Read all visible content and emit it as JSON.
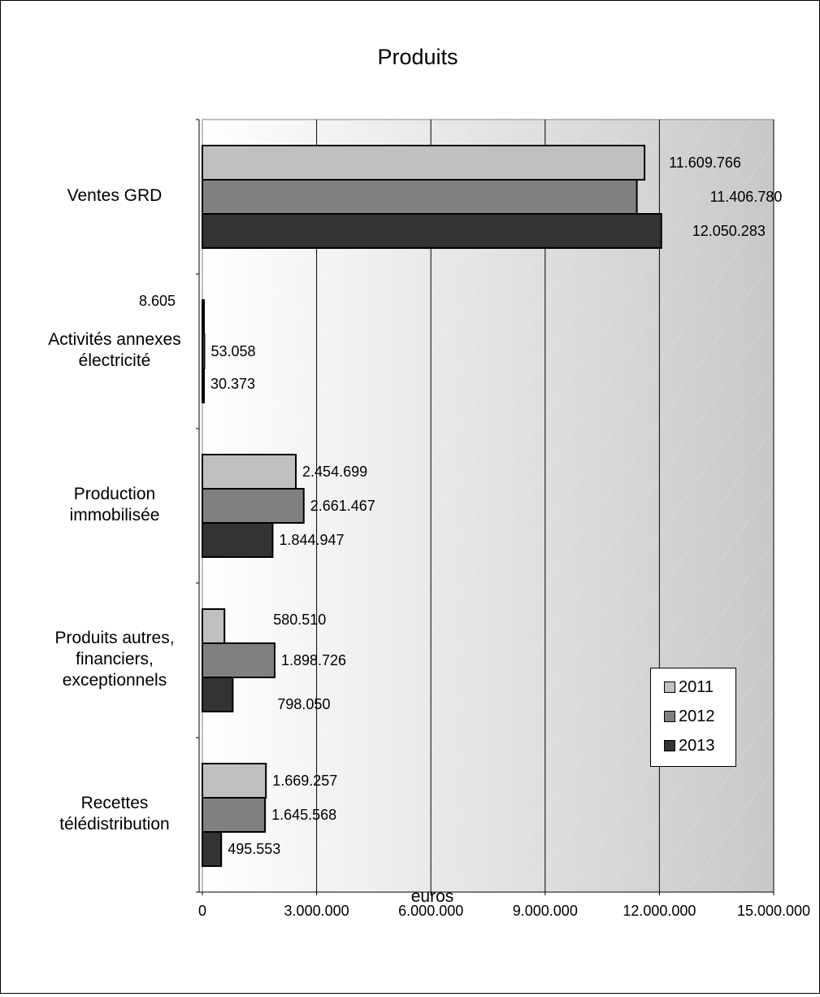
{
  "chart_data": {
    "type": "bar",
    "orientation": "horizontal",
    "title": "Produits",
    "xlabel": "euros",
    "ylabel": "",
    "xlim": [
      0,
      15000000
    ],
    "x_ticks": [
      0,
      3000000,
      6000000,
      9000000,
      12000000,
      15000000
    ],
    "x_tick_labels": [
      "0",
      "3.000.000",
      "6.000.000",
      "9.000.000",
      "12.000.000",
      "15.000.000"
    ],
    "categories": [
      [
        "Ventes GRD"
      ],
      [
        "Activités annexes",
        "électricité"
      ],
      [
        "Production",
        "immobilisée"
      ],
      [
        "Produits autres,",
        "financiers,",
        "exceptionnels"
      ],
      [
        "Recettes",
        "télédistribution"
      ]
    ],
    "series": [
      {
        "name": "2011",
        "color": "#c0c0c0",
        "values": [
          11609766,
          8605,
          2454699,
          580510,
          1669257
        ],
        "labels": [
          "11.609.766",
          "8.605",
          "2.454.699",
          "580.510",
          "1.669.257"
        ]
      },
      {
        "name": "2012",
        "color": "#808080",
        "values": [
          11406780,
          53058,
          2661467,
          1898726,
          1645568
        ],
        "labels": [
          "11.406.780",
          "53.058",
          "2.661.467",
          "1.898.726",
          "1.645.568"
        ]
      },
      {
        "name": "2013",
        "color": "#333333",
        "values": [
          12050283,
          30373,
          1844947,
          798050,
          495553
        ],
        "labels": [
          "12.050.283",
          "30.373",
          "1.844.947",
          "798.050",
          "495.553"
        ]
      }
    ],
    "grid": "vertical",
    "legend_position": "right",
    "plot_background": "gradient-white-to-gray"
  }
}
